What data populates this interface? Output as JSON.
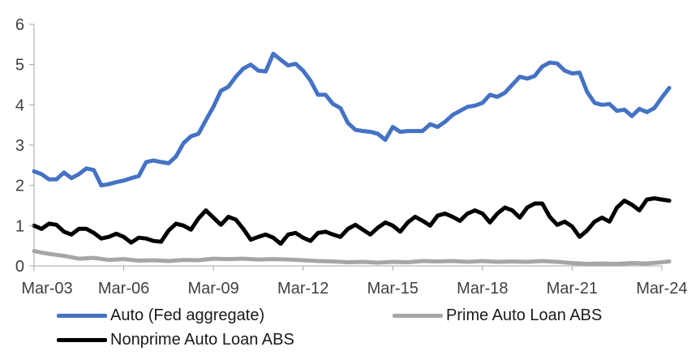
{
  "chart_data": {
    "type": "line",
    "title": "",
    "xlabel": "",
    "ylabel": "",
    "ylim": [
      0,
      6
    ],
    "yticks": [
      "0",
      "1",
      "2",
      "3",
      "4",
      "5",
      "6"
    ],
    "xlim": [
      2003.0,
      2024.0
    ],
    "xticks": [
      "Mar-03",
      "Mar-06",
      "Mar-09",
      "Mar-12",
      "Mar-15",
      "Mar-18",
      "Mar-21",
      "Mar-24"
    ],
    "grid": false,
    "legend_position": "bottom",
    "series": [
      {
        "name": "Auto (Fed aggregate)",
        "color": "#4472C4",
        "points": [
          [
            2003.0,
            2.35
          ],
          [
            2003.25,
            2.28
          ],
          [
            2003.5,
            2.15
          ],
          [
            2003.75,
            2.15
          ],
          [
            2004.0,
            2.32
          ],
          [
            2004.25,
            2.18
          ],
          [
            2004.5,
            2.28
          ],
          [
            2004.75,
            2.42
          ],
          [
            2005.0,
            2.38
          ],
          [
            2005.25,
            2.0
          ],
          [
            2005.5,
            2.03
          ],
          [
            2005.75,
            2.08
          ],
          [
            2006.0,
            2.12
          ],
          [
            2006.25,
            2.18
          ],
          [
            2006.5,
            2.23
          ],
          [
            2006.75,
            2.58
          ],
          [
            2007.0,
            2.62
          ],
          [
            2007.25,
            2.58
          ],
          [
            2007.5,
            2.55
          ],
          [
            2007.75,
            2.72
          ],
          [
            2008.0,
            3.05
          ],
          [
            2008.25,
            3.22
          ],
          [
            2008.5,
            3.28
          ],
          [
            2008.75,
            3.62
          ],
          [
            2009.0,
            3.95
          ],
          [
            2009.25,
            4.35
          ],
          [
            2009.5,
            4.45
          ],
          [
            2009.75,
            4.7
          ],
          [
            2010.0,
            4.9
          ],
          [
            2010.25,
            5.0
          ],
          [
            2010.5,
            4.85
          ],
          [
            2010.75,
            4.83
          ],
          [
            2011.0,
            5.27
          ],
          [
            2011.25,
            5.12
          ],
          [
            2011.5,
            4.98
          ],
          [
            2011.75,
            5.02
          ],
          [
            2012.0,
            4.85
          ],
          [
            2012.25,
            4.6
          ],
          [
            2012.5,
            4.25
          ],
          [
            2012.75,
            4.25
          ],
          [
            2013.0,
            4.02
          ],
          [
            2013.25,
            3.92
          ],
          [
            2013.5,
            3.55
          ],
          [
            2013.75,
            3.38
          ],
          [
            2014.0,
            3.35
          ],
          [
            2014.25,
            3.33
          ],
          [
            2014.5,
            3.28
          ],
          [
            2014.75,
            3.13
          ],
          [
            2015.0,
            3.45
          ],
          [
            2015.25,
            3.33
          ],
          [
            2015.5,
            3.35
          ],
          [
            2015.75,
            3.35
          ],
          [
            2016.0,
            3.35
          ],
          [
            2016.25,
            3.52
          ],
          [
            2016.5,
            3.45
          ],
          [
            2016.75,
            3.58
          ],
          [
            2017.0,
            3.75
          ],
          [
            2017.25,
            3.85
          ],
          [
            2017.5,
            3.95
          ],
          [
            2017.75,
            3.98
          ],
          [
            2018.0,
            4.05
          ],
          [
            2018.25,
            4.25
          ],
          [
            2018.5,
            4.2
          ],
          [
            2018.75,
            4.3
          ],
          [
            2019.0,
            4.5
          ],
          [
            2019.25,
            4.7
          ],
          [
            2019.5,
            4.65
          ],
          [
            2019.75,
            4.72
          ],
          [
            2020.0,
            4.95
          ],
          [
            2020.25,
            5.05
          ],
          [
            2020.5,
            5.03
          ],
          [
            2020.75,
            4.85
          ],
          [
            2021.0,
            4.78
          ],
          [
            2021.25,
            4.8
          ],
          [
            2021.5,
            4.32
          ],
          [
            2021.75,
            4.05
          ],
          [
            2022.0,
            4.0
          ],
          [
            2022.25,
            4.02
          ],
          [
            2022.5,
            3.85
          ],
          [
            2022.75,
            3.88
          ],
          [
            2023.0,
            3.72
          ],
          [
            2023.25,
            3.9
          ],
          [
            2023.5,
            3.82
          ],
          [
            2023.75,
            3.92
          ],
          [
            2024.0,
            4.18
          ],
          [
            2024.25,
            4.42
          ]
        ]
      },
      {
        "name": "Prime Auto Loan ABS",
        "color": "#A6A6A6",
        "points": [
          [
            2003.0,
            0.37
          ],
          [
            2003.25,
            0.33
          ],
          [
            2003.5,
            0.3
          ],
          [
            2004.0,
            0.25
          ],
          [
            2004.5,
            0.18
          ],
          [
            2005.0,
            0.2
          ],
          [
            2005.5,
            0.15
          ],
          [
            2006.0,
            0.17
          ],
          [
            2006.5,
            0.13
          ],
          [
            2007.0,
            0.14
          ],
          [
            2007.5,
            0.12
          ],
          [
            2008.0,
            0.15
          ],
          [
            2008.5,
            0.14
          ],
          [
            2009.0,
            0.18
          ],
          [
            2009.5,
            0.17
          ],
          [
            2010.0,
            0.18
          ],
          [
            2010.5,
            0.16
          ],
          [
            2011.0,
            0.17
          ],
          [
            2011.5,
            0.16
          ],
          [
            2012.0,
            0.14
          ],
          [
            2012.5,
            0.12
          ],
          [
            2013.0,
            0.11
          ],
          [
            2013.5,
            0.09
          ],
          [
            2014.0,
            0.1
          ],
          [
            2014.5,
            0.08
          ],
          [
            2015.0,
            0.1
          ],
          [
            2015.5,
            0.09
          ],
          [
            2016.0,
            0.12
          ],
          [
            2016.5,
            0.11
          ],
          [
            2017.0,
            0.12
          ],
          [
            2017.5,
            0.1
          ],
          [
            2018.0,
            0.12
          ],
          [
            2018.5,
            0.1
          ],
          [
            2019.0,
            0.11
          ],
          [
            2019.5,
            0.1
          ],
          [
            2020.0,
            0.12
          ],
          [
            2020.5,
            0.1
          ],
          [
            2021.0,
            0.07
          ],
          [
            2021.5,
            0.05
          ],
          [
            2022.0,
            0.06
          ],
          [
            2022.5,
            0.05
          ],
          [
            2023.0,
            0.07
          ],
          [
            2023.5,
            0.06
          ],
          [
            2024.0,
            0.09
          ],
          [
            2024.25,
            0.11
          ]
        ]
      },
      {
        "name": "Nonprime Auto Loan ABS",
        "color": "#000000",
        "points": [
          [
            2003.0,
            1.0
          ],
          [
            2003.25,
            0.92
          ],
          [
            2003.5,
            1.05
          ],
          [
            2003.75,
            1.02
          ],
          [
            2004.0,
            0.85
          ],
          [
            2004.25,
            0.78
          ],
          [
            2004.5,
            0.92
          ],
          [
            2004.75,
            0.92
          ],
          [
            2005.0,
            0.82
          ],
          [
            2005.25,
            0.68
          ],
          [
            2005.5,
            0.72
          ],
          [
            2005.75,
            0.8
          ],
          [
            2006.0,
            0.72
          ],
          [
            2006.25,
            0.58
          ],
          [
            2006.5,
            0.7
          ],
          [
            2006.75,
            0.68
          ],
          [
            2007.0,
            0.62
          ],
          [
            2007.25,
            0.6
          ],
          [
            2007.5,
            0.88
          ],
          [
            2007.75,
            1.05
          ],
          [
            2008.0,
            1.0
          ],
          [
            2008.25,
            0.9
          ],
          [
            2008.5,
            1.18
          ],
          [
            2008.75,
            1.38
          ],
          [
            2009.0,
            1.2
          ],
          [
            2009.25,
            1.02
          ],
          [
            2009.5,
            1.22
          ],
          [
            2009.75,
            1.15
          ],
          [
            2010.0,
            0.92
          ],
          [
            2010.25,
            0.65
          ],
          [
            2010.5,
            0.72
          ],
          [
            2010.75,
            0.78
          ],
          [
            2011.0,
            0.7
          ],
          [
            2011.25,
            0.55
          ],
          [
            2011.5,
            0.78
          ],
          [
            2011.75,
            0.82
          ],
          [
            2012.0,
            0.7
          ],
          [
            2012.25,
            0.62
          ],
          [
            2012.5,
            0.82
          ],
          [
            2012.75,
            0.85
          ],
          [
            2013.0,
            0.78
          ],
          [
            2013.25,
            0.72
          ],
          [
            2013.5,
            0.92
          ],
          [
            2013.75,
            1.02
          ],
          [
            2014.0,
            0.9
          ],
          [
            2014.25,
            0.78
          ],
          [
            2014.5,
            0.95
          ],
          [
            2014.75,
            1.08
          ],
          [
            2015.0,
            1.0
          ],
          [
            2015.25,
            0.85
          ],
          [
            2015.5,
            1.08
          ],
          [
            2015.75,
            1.22
          ],
          [
            2016.0,
            1.12
          ],
          [
            2016.25,
            1.0
          ],
          [
            2016.5,
            1.25
          ],
          [
            2016.75,
            1.3
          ],
          [
            2017.0,
            1.22
          ],
          [
            2017.25,
            1.12
          ],
          [
            2017.5,
            1.3
          ],
          [
            2017.75,
            1.38
          ],
          [
            2018.0,
            1.3
          ],
          [
            2018.25,
            1.08
          ],
          [
            2018.5,
            1.3
          ],
          [
            2018.75,
            1.45
          ],
          [
            2019.0,
            1.38
          ],
          [
            2019.25,
            1.2
          ],
          [
            2019.5,
            1.45
          ],
          [
            2019.75,
            1.55
          ],
          [
            2020.0,
            1.55
          ],
          [
            2020.25,
            1.22
          ],
          [
            2020.5,
            1.02
          ],
          [
            2020.75,
            1.1
          ],
          [
            2021.0,
            0.98
          ],
          [
            2021.25,
            0.72
          ],
          [
            2021.5,
            0.88
          ],
          [
            2021.75,
            1.1
          ],
          [
            2022.0,
            1.2
          ],
          [
            2022.25,
            1.1
          ],
          [
            2022.5,
            1.45
          ],
          [
            2022.75,
            1.62
          ],
          [
            2023.0,
            1.52
          ],
          [
            2023.25,
            1.38
          ],
          [
            2023.5,
            1.65
          ],
          [
            2023.75,
            1.68
          ],
          [
            2024.0,
            1.65
          ],
          [
            2024.25,
            1.62
          ]
        ]
      }
    ]
  }
}
